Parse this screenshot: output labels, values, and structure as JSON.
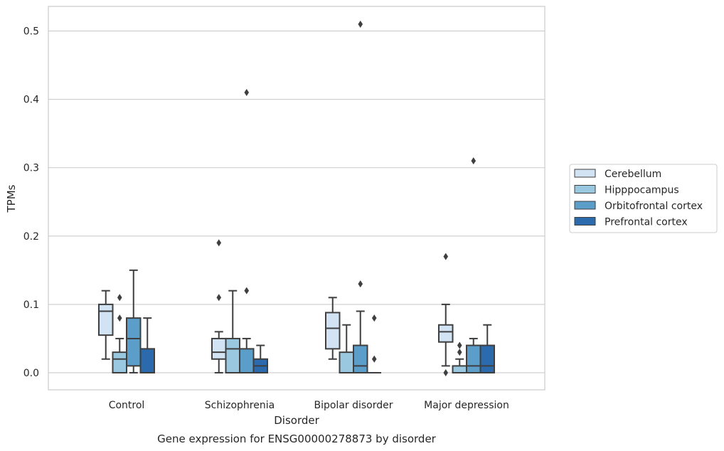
{
  "chart_data": {
    "type": "box",
    "xlabel": "Disorder",
    "ylabel": "TPMs",
    "caption": "Gene expression for ENSG00000278873 by disorder",
    "ylim": [
      -0.025,
      0.536
    ],
    "yticks": [
      0.0,
      0.1,
      0.2,
      0.3,
      0.4,
      0.5
    ],
    "ytick_labels": [
      "0.0",
      "0.1",
      "0.2",
      "0.3",
      "0.4",
      "0.5"
    ],
    "grid": "horizontal",
    "legend_position": "right",
    "categories": [
      "Control",
      "Schizophrenia",
      "Bipolar disorder",
      "Major depression"
    ],
    "series": [
      {
        "name": "Cerebellum",
        "color": "#d2e3f3",
        "boxes": [
          {
            "whislo": 0.02,
            "q1": 0.055,
            "med": 0.09,
            "q3": 0.1,
            "whishi": 0.12,
            "fliers": []
          },
          {
            "whislo": 0.0,
            "q1": 0.02,
            "med": 0.03,
            "q3": 0.05,
            "whishi": 0.06,
            "fliers": [
              0.11,
              0.19
            ]
          },
          {
            "whislo": 0.02,
            "q1": 0.035,
            "med": 0.065,
            "q3": 0.088,
            "whishi": 0.11,
            "fliers": []
          },
          {
            "whislo": 0.01,
            "q1": 0.045,
            "med": 0.06,
            "q3": 0.07,
            "whishi": 0.1,
            "fliers": [
              0.0,
              0.17
            ]
          }
        ]
      },
      {
        "name": "Hipppocampus",
        "color": "#9ac8e0",
        "boxes": [
          {
            "whislo": 0.0,
            "q1": 0.0,
            "med": 0.02,
            "q3": 0.03,
            "whishi": 0.05,
            "fliers": [
              0.08,
              0.11
            ]
          },
          {
            "whislo": 0.0,
            "q1": 0.0,
            "med": 0.035,
            "q3": 0.05,
            "whishi": 0.12,
            "fliers": []
          },
          {
            "whislo": 0.0,
            "q1": 0.0,
            "med": 0.0,
            "q3": 0.03,
            "whishi": 0.07,
            "fliers": []
          },
          {
            "whislo": 0.0,
            "q1": 0.0,
            "med": 0.0,
            "q3": 0.01,
            "whishi": 0.02,
            "fliers": [
              0.03,
              0.04
            ]
          }
        ]
      },
      {
        "name": "Orbitofrontal cortex",
        "color": "#5a9ec9",
        "boxes": [
          {
            "whislo": 0.0,
            "q1": 0.01,
            "med": 0.05,
            "q3": 0.08,
            "whishi": 0.15,
            "fliers": []
          },
          {
            "whislo": 0.0,
            "q1": 0.0,
            "med": 0.0,
            "q3": 0.035,
            "whishi": 0.05,
            "fliers": [
              0.12,
              0.41
            ]
          },
          {
            "whislo": 0.0,
            "q1": 0.0,
            "med": 0.01,
            "q3": 0.04,
            "whishi": 0.09,
            "fliers": [
              0.13,
              0.51
            ]
          },
          {
            "whislo": 0.0,
            "q1": 0.0,
            "med": 0.01,
            "q3": 0.04,
            "whishi": 0.05,
            "fliers": [
              0.31
            ]
          }
        ]
      },
      {
        "name": "Prefrontal cortex",
        "color": "#2a6aad",
        "boxes": [
          {
            "whislo": 0.0,
            "q1": 0.0,
            "med": 0.0,
            "q3": 0.035,
            "whishi": 0.08,
            "fliers": []
          },
          {
            "whislo": 0.0,
            "q1": 0.0,
            "med": 0.01,
            "q3": 0.02,
            "whishi": 0.04,
            "fliers": []
          },
          {
            "whislo": 0.0,
            "q1": 0.0,
            "med": 0.0,
            "q3": 0.0,
            "whishi": 0.0,
            "fliers": [
              0.02,
              0.08
            ]
          },
          {
            "whislo": 0.0,
            "q1": 0.0,
            "med": 0.01,
            "q3": 0.04,
            "whishi": 0.07,
            "fliers": []
          }
        ]
      }
    ]
  },
  "colors": {
    "line": "#3f3f3f",
    "grid": "#cccccc",
    "axes_edge": "#cccccc"
  }
}
